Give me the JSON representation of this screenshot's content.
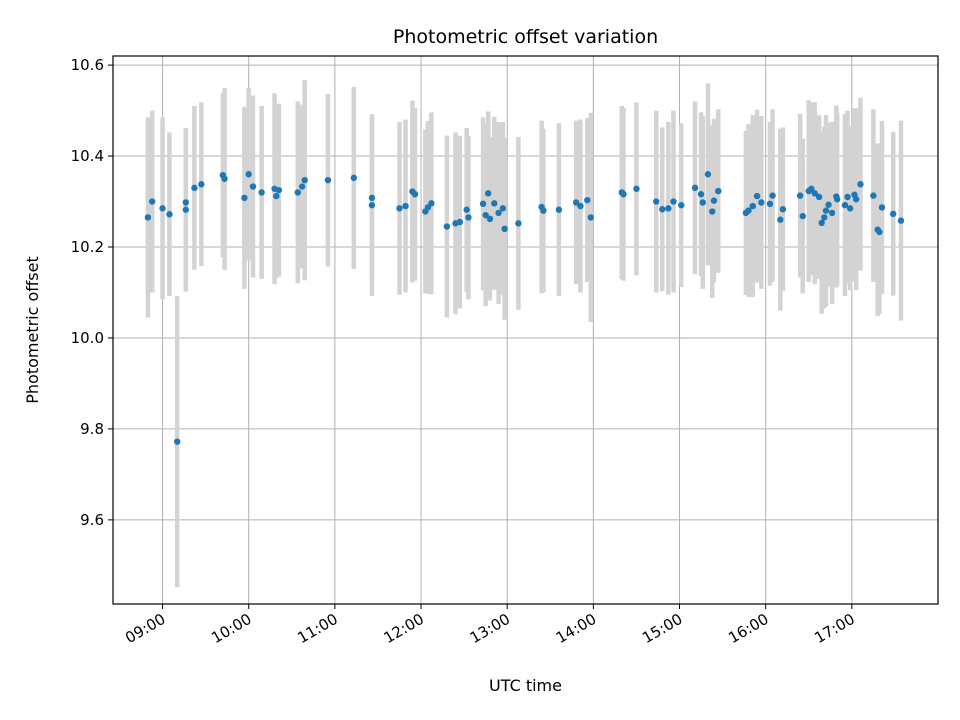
{
  "chart_data": {
    "type": "scatter",
    "title": "Photometric offset variation",
    "xlabel": "UTC time",
    "ylabel": "Photometric offset",
    "x_unit": "UTC hours",
    "xlim": [
      8.425,
      18.0
    ],
    "ylim": [
      9.415,
      10.62
    ],
    "grid": true,
    "legend": "none",
    "x_ticks": [
      {
        "value": 9,
        "label": "09:00"
      },
      {
        "value": 10,
        "label": "10:00"
      },
      {
        "value": 11,
        "label": "11:00"
      },
      {
        "value": 12,
        "label": "12:00"
      },
      {
        "value": 13,
        "label": "13:00"
      },
      {
        "value": 14,
        "label": "14:00"
      },
      {
        "value": 15,
        "label": "15:00"
      },
      {
        "value": 16,
        "label": "16:00"
      },
      {
        "value": 17,
        "label": "17:00"
      }
    ],
    "y_ticks": [
      {
        "value": 9.6,
        "label": "9.6"
      },
      {
        "value": 9.8,
        "label": "9.8"
      },
      {
        "value": 10.0,
        "label": "10.0"
      },
      {
        "value": 10.2,
        "label": "10.2"
      },
      {
        "value": 10.4,
        "label": "10.4"
      },
      {
        "value": 10.6,
        "label": "10.6"
      }
    ],
    "colors": {
      "points": "#1f77b4",
      "errorbars": "#d3d3d3",
      "grid": "#b0b0b0"
    },
    "points": [
      [
        8.83,
        10.265,
        0.22
      ],
      [
        8.88,
        10.3,
        0.2
      ],
      [
        9.0,
        10.285,
        0.2
      ],
      [
        9.08,
        10.272,
        0.18
      ],
      [
        9.17,
        9.772,
        0.32
      ],
      [
        9.27,
        10.298,
        0.16
      ],
      [
        9.27,
        10.282,
        0.18
      ],
      [
        9.37,
        10.33,
        0.18
      ],
      [
        9.45,
        10.338,
        0.18
      ],
      [
        9.7,
        10.358,
        0.18
      ],
      [
        9.72,
        10.35,
        0.2
      ],
      [
        9.95,
        10.308,
        0.2
      ],
      [
        10.0,
        10.36,
        0.19
      ],
      [
        10.05,
        10.333,
        0.2
      ],
      [
        10.15,
        10.32,
        0.19
      ],
      [
        10.3,
        10.328,
        0.21
      ],
      [
        10.32,
        10.312,
        0.18
      ],
      [
        10.35,
        10.325,
        0.19
      ],
      [
        10.57,
        10.32,
        0.2
      ],
      [
        10.62,
        10.333,
        0.18
      ],
      [
        10.65,
        10.347,
        0.22
      ],
      [
        10.92,
        10.347,
        0.19
      ],
      [
        11.22,
        10.352,
        0.2
      ],
      [
        11.43,
        10.308,
        0.18
      ],
      [
        11.43,
        10.292,
        0.2
      ],
      [
        11.75,
        10.285,
        0.19
      ],
      [
        11.82,
        10.29,
        0.19
      ],
      [
        11.9,
        10.322,
        0.2
      ],
      [
        11.93,
        10.316,
        0.19
      ],
      [
        12.05,
        10.278,
        0.18
      ],
      [
        12.08,
        10.287,
        0.19
      ],
      [
        12.12,
        10.296,
        0.2
      ],
      [
        12.3,
        10.245,
        0.2
      ],
      [
        12.4,
        10.252,
        0.2
      ],
      [
        12.45,
        10.255,
        0.19
      ],
      [
        12.53,
        10.282,
        0.18
      ],
      [
        12.55,
        10.265,
        0.18
      ],
      [
        12.72,
        10.295,
        0.19
      ],
      [
        12.75,
        10.27,
        0.2
      ],
      [
        12.78,
        10.318,
        0.18
      ],
      [
        12.8,
        10.262,
        0.18
      ],
      [
        12.85,
        10.296,
        0.19
      ],
      [
        12.9,
        10.275,
        0.2
      ],
      [
        12.95,
        10.285,
        0.19
      ],
      [
        12.97,
        10.24,
        0.2
      ],
      [
        13.13,
        10.252,
        0.19
      ],
      [
        13.4,
        10.288,
        0.19
      ],
      [
        13.42,
        10.28,
        0.18
      ],
      [
        13.6,
        10.282,
        0.19
      ],
      [
        13.8,
        10.298,
        0.18
      ],
      [
        13.85,
        10.29,
        0.19
      ],
      [
        13.93,
        10.303,
        0.18
      ],
      [
        13.97,
        10.265,
        0.23
      ],
      [
        14.33,
        10.32,
        0.19
      ],
      [
        14.35,
        10.316,
        0.19
      ],
      [
        14.5,
        10.328,
        0.19
      ],
      [
        14.73,
        10.3,
        0.2
      ],
      [
        14.8,
        10.283,
        0.18
      ],
      [
        14.87,
        10.285,
        0.19
      ],
      [
        14.93,
        10.3,
        0.2
      ],
      [
        15.02,
        10.292,
        0.18
      ],
      [
        15.18,
        10.33,
        0.19
      ],
      [
        15.25,
        10.316,
        0.18
      ],
      [
        15.27,
        10.298,
        0.19
      ],
      [
        15.33,
        10.36,
        0.2
      ],
      [
        15.38,
        10.278,
        0.19
      ],
      [
        15.4,
        10.302,
        0.18
      ],
      [
        15.45,
        10.323,
        0.18
      ],
      [
        15.77,
        10.275,
        0.18
      ],
      [
        15.8,
        10.28,
        0.19
      ],
      [
        15.85,
        10.29,
        0.2
      ],
      [
        15.9,
        10.312,
        0.19
      ],
      [
        15.95,
        10.298,
        0.19
      ],
      [
        16.05,
        10.295,
        0.18
      ],
      [
        16.08,
        10.313,
        0.19
      ],
      [
        16.17,
        10.26,
        0.2
      ],
      [
        16.2,
        10.283,
        0.18
      ],
      [
        16.4,
        10.313,
        0.18
      ],
      [
        16.43,
        10.268,
        0.17
      ],
      [
        16.5,
        10.323,
        0.2
      ],
      [
        16.53,
        10.328,
        0.19
      ],
      [
        16.57,
        10.318,
        0.2
      ],
      [
        16.62,
        10.31,
        0.18
      ],
      [
        16.65,
        10.253,
        0.2
      ],
      [
        16.68,
        10.265,
        0.2
      ],
      [
        16.7,
        10.28,
        0.21
      ],
      [
        16.73,
        10.293,
        0.18
      ],
      [
        16.77,
        10.275,
        0.2
      ],
      [
        16.82,
        10.311,
        0.2
      ],
      [
        16.83,
        10.305,
        0.19
      ],
      [
        16.92,
        10.292,
        0.2
      ],
      [
        16.95,
        10.31,
        0.19
      ],
      [
        16.98,
        10.285,
        0.18
      ],
      [
        17.03,
        10.315,
        0.19
      ],
      [
        17.05,
        10.305,
        0.2
      ],
      [
        17.1,
        10.338,
        0.19
      ],
      [
        17.25,
        10.313,
        0.19
      ],
      [
        17.3,
        10.238,
        0.19
      ],
      [
        17.32,
        10.233,
        0.18
      ],
      [
        17.35,
        10.287,
        0.19
      ],
      [
        17.48,
        10.273,
        0.18
      ],
      [
        17.57,
        10.258,
        0.22
      ]
    ]
  }
}
